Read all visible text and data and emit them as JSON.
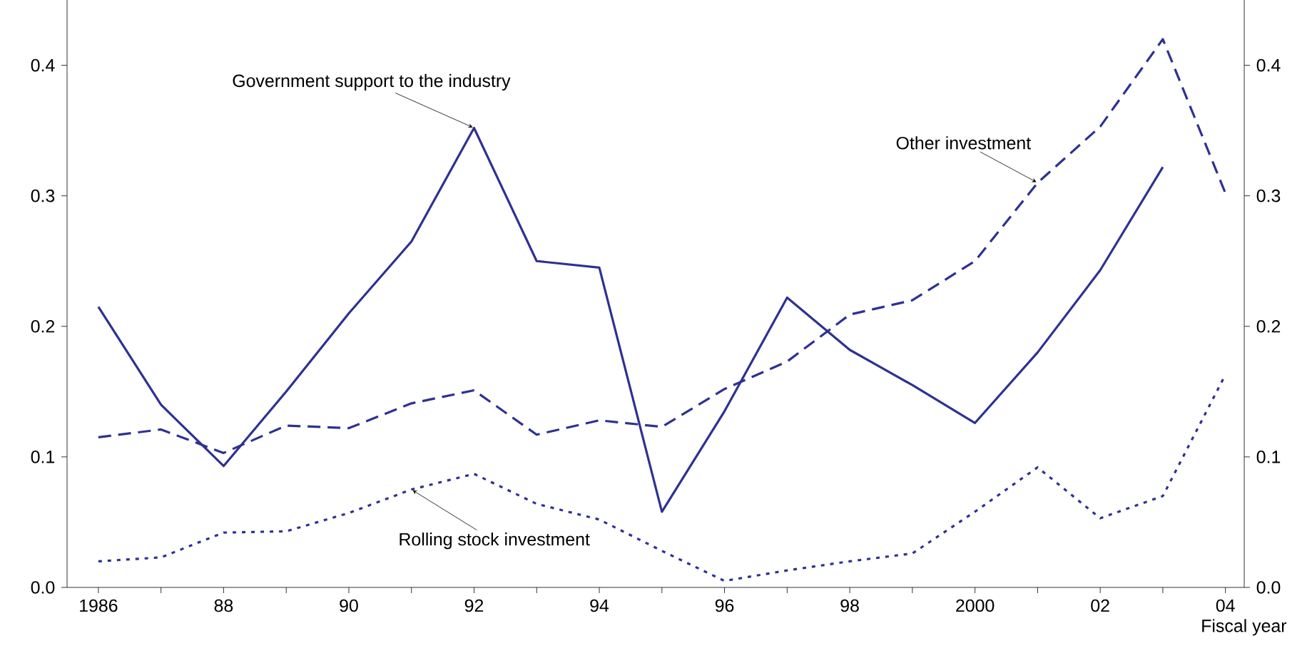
{
  "chart_data": {
    "type": "line",
    "x": [
      1986,
      1987,
      1988,
      1989,
      1990,
      1991,
      1992,
      1993,
      1994,
      1995,
      1996,
      1997,
      1998,
      1999,
      2000,
      2001,
      2002,
      2003,
      2004
    ],
    "series": [
      {
        "color": "#2e3192",
        "line_style": "solid",
        "values": [
          0.215,
          0.14,
          0.093,
          0.15,
          0.21,
          0.265,
          0.352,
          0.25,
          0.245,
          0.058,
          0.135,
          0.222,
          0.182,
          0.155,
          0.126,
          0.18,
          0.243,
          0.322,
          null
        ]
      },
      {
        "color": "#2e3192",
        "line_style": "dashed",
        "values": [
          0.115,
          0.121,
          0.103,
          0.124,
          0.122,
          0.141,
          0.151,
          0.117,
          0.128,
          0.123,
          0.152,
          0.173,
          0.209,
          0.22,
          0.25,
          0.31,
          0.353,
          0.42,
          0.302
        ]
      },
      {
        "color": "#2e3192",
        "line_style": "dotted",
        "values": [
          0.02,
          0.023,
          0.042,
          0.043,
          0.057,
          0.075,
          0.087,
          0.064,
          0.052,
          0.028,
          0.005,
          0.013,
          0.02,
          0.026,
          0.058,
          0.092,
          0.053,
          0.07,
          0.163
        ]
      }
    ],
    "xlabel": "Fiscal year",
    "annotations": [
      {
        "text": "Government support to the industry",
        "x": 1992,
        "y": 0.352
      },
      {
        "text": "Other investment",
        "x": 2001,
        "y": 0.31
      },
      {
        "text": "Rolling stock investment",
        "x": 1991,
        "y": 0.075
      }
    ],
    "xlim": [
      1985.5,
      2004.3
    ],
    "ylim": [
      0,
      0.45
    ],
    "xticks": [
      {
        "value": 1986,
        "label": "1986"
      },
      {
        "value": 1987,
        "label": null
      },
      {
        "value": 1988,
        "label": "88"
      },
      {
        "value": 1989,
        "label": null
      },
      {
        "value": 1990,
        "label": "90"
      },
      {
        "value": 1991,
        "label": null
      },
      {
        "value": 1992,
        "label": "92"
      },
      {
        "value": 1993,
        "label": null
      },
      {
        "value": 1994,
        "label": "94"
      },
      {
        "value": 1995,
        "label": null
      },
      {
        "value": 1996,
        "label": "96"
      },
      {
        "value": 1997,
        "label": null
      },
      {
        "value": 1998,
        "label": "98"
      },
      {
        "value": 1999,
        "label": null
      },
      {
        "value": 2000,
        "label": "2000"
      },
      {
        "value": 2001,
        "label": null
      },
      {
        "value": 2002,
        "label": "02"
      },
      {
        "value": 2003,
        "label": null
      },
      {
        "value": 2004,
        "label": "04"
      }
    ],
    "yticks": [
      {
        "value": 0,
        "label": "0.0"
      },
      0.1,
      0.2,
      0.3,
      0.4
    ],
    "y2lim": [
      0,
      0.45
    ],
    "y2ticks": [
      {
        "value": 0,
        "label": "0.0"
      },
      0.1,
      0.2,
      0.3,
      0.4
    ]
  }
}
